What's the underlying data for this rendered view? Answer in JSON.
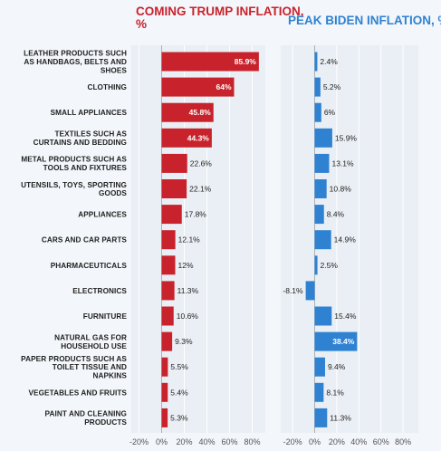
{
  "chart_data": [
    {
      "type": "bar",
      "orientation": "horizontal",
      "title": "COMING TRUMP INFLATION, %",
      "title_color": "#c8232c",
      "bar_color": "#c8232c",
      "categories": [
        "LEATHER PRODUCTS SUCH AS HANDBAGS, BELTS AND SHOES",
        "CLOTHING",
        "SMALL APPLIANCES",
        "TEXTILES SUCH AS CURTAINS AND BEDDING",
        "METAL PRODUCTS SUCH AS TOOLS AND FIXTURES",
        "UTENSILS, TOYS, SPORTING GOODS",
        "APPLIANCES",
        "CARS AND CAR PARTS",
        "PHARMACEUTICALS",
        "ELECTRONICS",
        "FURNITURE",
        "NATURAL GAS FOR HOUSEHOLD USE",
        "PAPER PRODUCTS SUCH AS TOILET TISSUE AND NAPKINS",
        "VEGETABLES AND FRUITS",
        "PAINT AND CLEANING PRODUCTS"
      ],
      "values": [
        85.9,
        64,
        45.8,
        44.3,
        22.6,
        22.1,
        17.8,
        12.1,
        12,
        11.3,
        10.6,
        9.3,
        5.5,
        5.4,
        5.3
      ],
      "labels": [
        "85.9%",
        "64%",
        "45.8%",
        "44.3%",
        "22.6%",
        "22.1%",
        "17.8%",
        "12.1%",
        "12%",
        "11.3%",
        "10.6%",
        "9.3%",
        "5.5%",
        "5.4%",
        "5.3%"
      ],
      "xlim": [
        -20,
        90
      ],
      "xticks": [
        "-20%",
        "0%",
        "20%",
        "40%",
        "60%",
        "80%"
      ]
    },
    {
      "type": "bar",
      "orientation": "horizontal",
      "title": "PEAK BIDEN INFLATION, %",
      "title_color": "#2f82d1",
      "bar_color": "#2f82d1",
      "categories": [
        "LEATHER PRODUCTS SUCH AS HANDBAGS, BELTS AND SHOES",
        "CLOTHING",
        "SMALL APPLIANCES",
        "TEXTILES SUCH AS CURTAINS AND BEDDING",
        "METAL PRODUCTS SUCH AS TOOLS AND FIXTURES",
        "UTENSILS, TOYS, SPORTING GOODS",
        "APPLIANCES",
        "CARS AND CAR PARTS",
        "PHARMACEUTICALS",
        "ELECTRONICS",
        "FURNITURE",
        "NATURAL GAS FOR HOUSEHOLD USE",
        "PAPER PRODUCTS SUCH AS TOILET TISSUE AND NAPKINS",
        "VEGETABLES AND FRUITS",
        "PAINT AND CLEANING PRODUCTS"
      ],
      "values": [
        2.4,
        5.2,
        6,
        15.9,
        13.1,
        10.8,
        8.4,
        14.9,
        2.5,
        -8.1,
        15.4,
        38.4,
        9.4,
        8.1,
        11.3
      ],
      "labels": [
        "2.4%",
        "5.2%",
        "6%",
        "15.9%",
        "13.1%",
        "10.8%",
        "8.4%",
        "14.9%",
        "2.5%",
        "-8.1%",
        "15.4%",
        "38.4%",
        "9.4%",
        "8.1%",
        "11.3%"
      ],
      "xlim": [
        -25,
        90
      ],
      "xticks": [
        "-20%",
        "0%",
        "20%",
        "40%",
        "60%",
        "80%"
      ]
    }
  ],
  "display": {
    "category_lines": [
      [
        "LEATHER PRODUCTS SUCH",
        "AS HANDBAGS, BELTS AND",
        "SHOES"
      ],
      [
        "CLOTHING"
      ],
      [
        "SMALL APPLIANCES"
      ],
      [
        "TEXTILES SUCH AS",
        "CURTAINS AND BEDDING"
      ],
      [
        "METAL PRODUCTS SUCH AS",
        "TOOLS AND FIXTURES"
      ],
      [
        "UTENSILS, TOYS, SPORTING",
        "GOODS"
      ],
      [
        "APPLIANCES"
      ],
      [
        "CARS AND CAR PARTS"
      ],
      [
        "PHARMACEUTICALS"
      ],
      [
        "ELECTRONICS"
      ],
      [
        "FURNITURE"
      ],
      [
        "NATURAL GAS FOR",
        "HOUSEHOLD USE"
      ],
      [
        "PAPER PRODUCTS SUCH AS",
        "TOILET TISSUE AND",
        "NAPKINS"
      ],
      [
        "VEGETABLES AND FRUITS"
      ],
      [
        "PAINT AND CLEANING",
        "PRODUCTS"
      ]
    ],
    "title_lines_left": [
      "COMING TRUMP INFLATION,",
      "%"
    ],
    "title_lines_right": [
      "PEAK BIDEN INFLATION, %"
    ]
  }
}
